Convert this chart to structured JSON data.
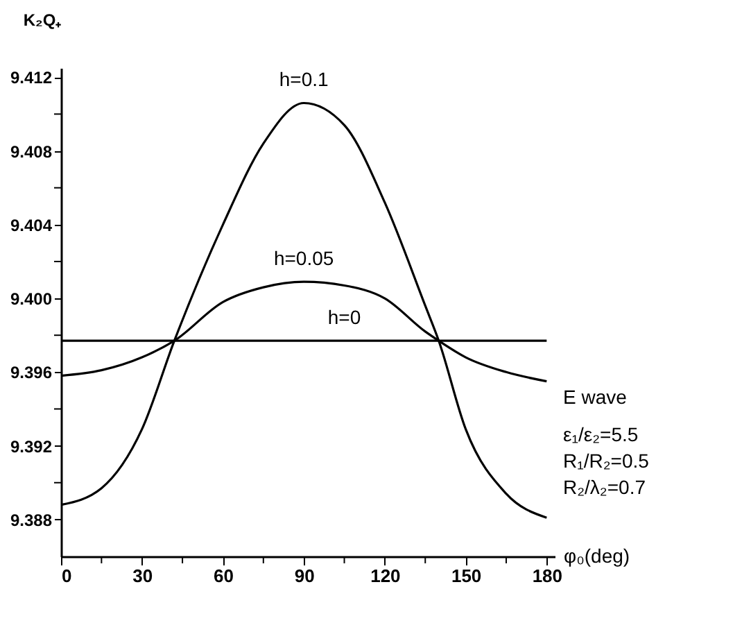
{
  "chart_data": {
    "type": "line",
    "xlabel": "φ₀(deg)",
    "ylabel": "K₂Q₊",
    "x": [
      0,
      15,
      30,
      42,
      60,
      75,
      90,
      105,
      120,
      135,
      140,
      150,
      165,
      180
    ],
    "series": [
      {
        "name": "h=0.1",
        "color": "#000000",
        "values": [
          9.3888,
          9.3897,
          9.3929,
          9.3977,
          9.404,
          9.4084,
          9.4106,
          9.4094,
          9.4052,
          9.3996,
          9.3977,
          9.3929,
          9.3894,
          9.3881
        ]
      },
      {
        "name": "h=0.05",
        "color": "#000000",
        "values": [
          9.3958,
          9.3961,
          9.3968,
          9.3977,
          9.3998,
          9.4006,
          9.4009,
          9.4007,
          9.4,
          9.3982,
          9.3977,
          9.3968,
          9.396,
          9.3955
        ]
      },
      {
        "name": "h=0",
        "color": "#000000",
        "values": [
          9.3977,
          9.3977,
          9.3977,
          9.3977,
          9.3977,
          9.3977,
          9.3977,
          9.3977,
          9.3977,
          9.3977,
          9.3977,
          9.3977,
          9.3977,
          9.3977
        ]
      }
    ],
    "xlim": [
      0,
      183
    ],
    "xticks": [
      0,
      {
        "value": 15,
        "label": null
      },
      30,
      {
        "value": 45,
        "label": null
      },
      60,
      {
        "value": 75,
        "label": null
      },
      90,
      {
        "value": 105,
        "label": null
      },
      120,
      {
        "value": 135,
        "label": null
      },
      150,
      {
        "value": 165,
        "label": null
      },
      180
    ],
    "ylim": [
      9.386,
      9.4125
    ],
    "yticks": [
      {
        "value": 9.388,
        "label": "9.388"
      },
      {
        "value": 9.39,
        "label": null
      },
      {
        "value": 9.392,
        "label": "9.392"
      },
      {
        "value": 9.394,
        "label": null
      },
      {
        "value": 9.396,
        "label": "9.396"
      },
      {
        "value": 9.398,
        "label": null
      },
      {
        "value": 9.4,
        "label": "9.400"
      },
      {
        "value": 9.402,
        "label": null
      },
      {
        "value": 9.404,
        "label": "9.404"
      },
      {
        "value": 9.406,
        "label": null
      },
      {
        "value": 9.408,
        "label": "9.408"
      },
      {
        "value": 9.41,
        "label": null
      },
      {
        "value": 9.412,
        "label": "9.412"
      }
    ],
    "grid": false,
    "legend": false,
    "marker": "none",
    "line_style": "solid",
    "annotations": [
      "E wave",
      "ε₁/ε₂=5.5",
      "R₁/R₂=0.5",
      "R₂/λ₂=0.7"
    ]
  }
}
